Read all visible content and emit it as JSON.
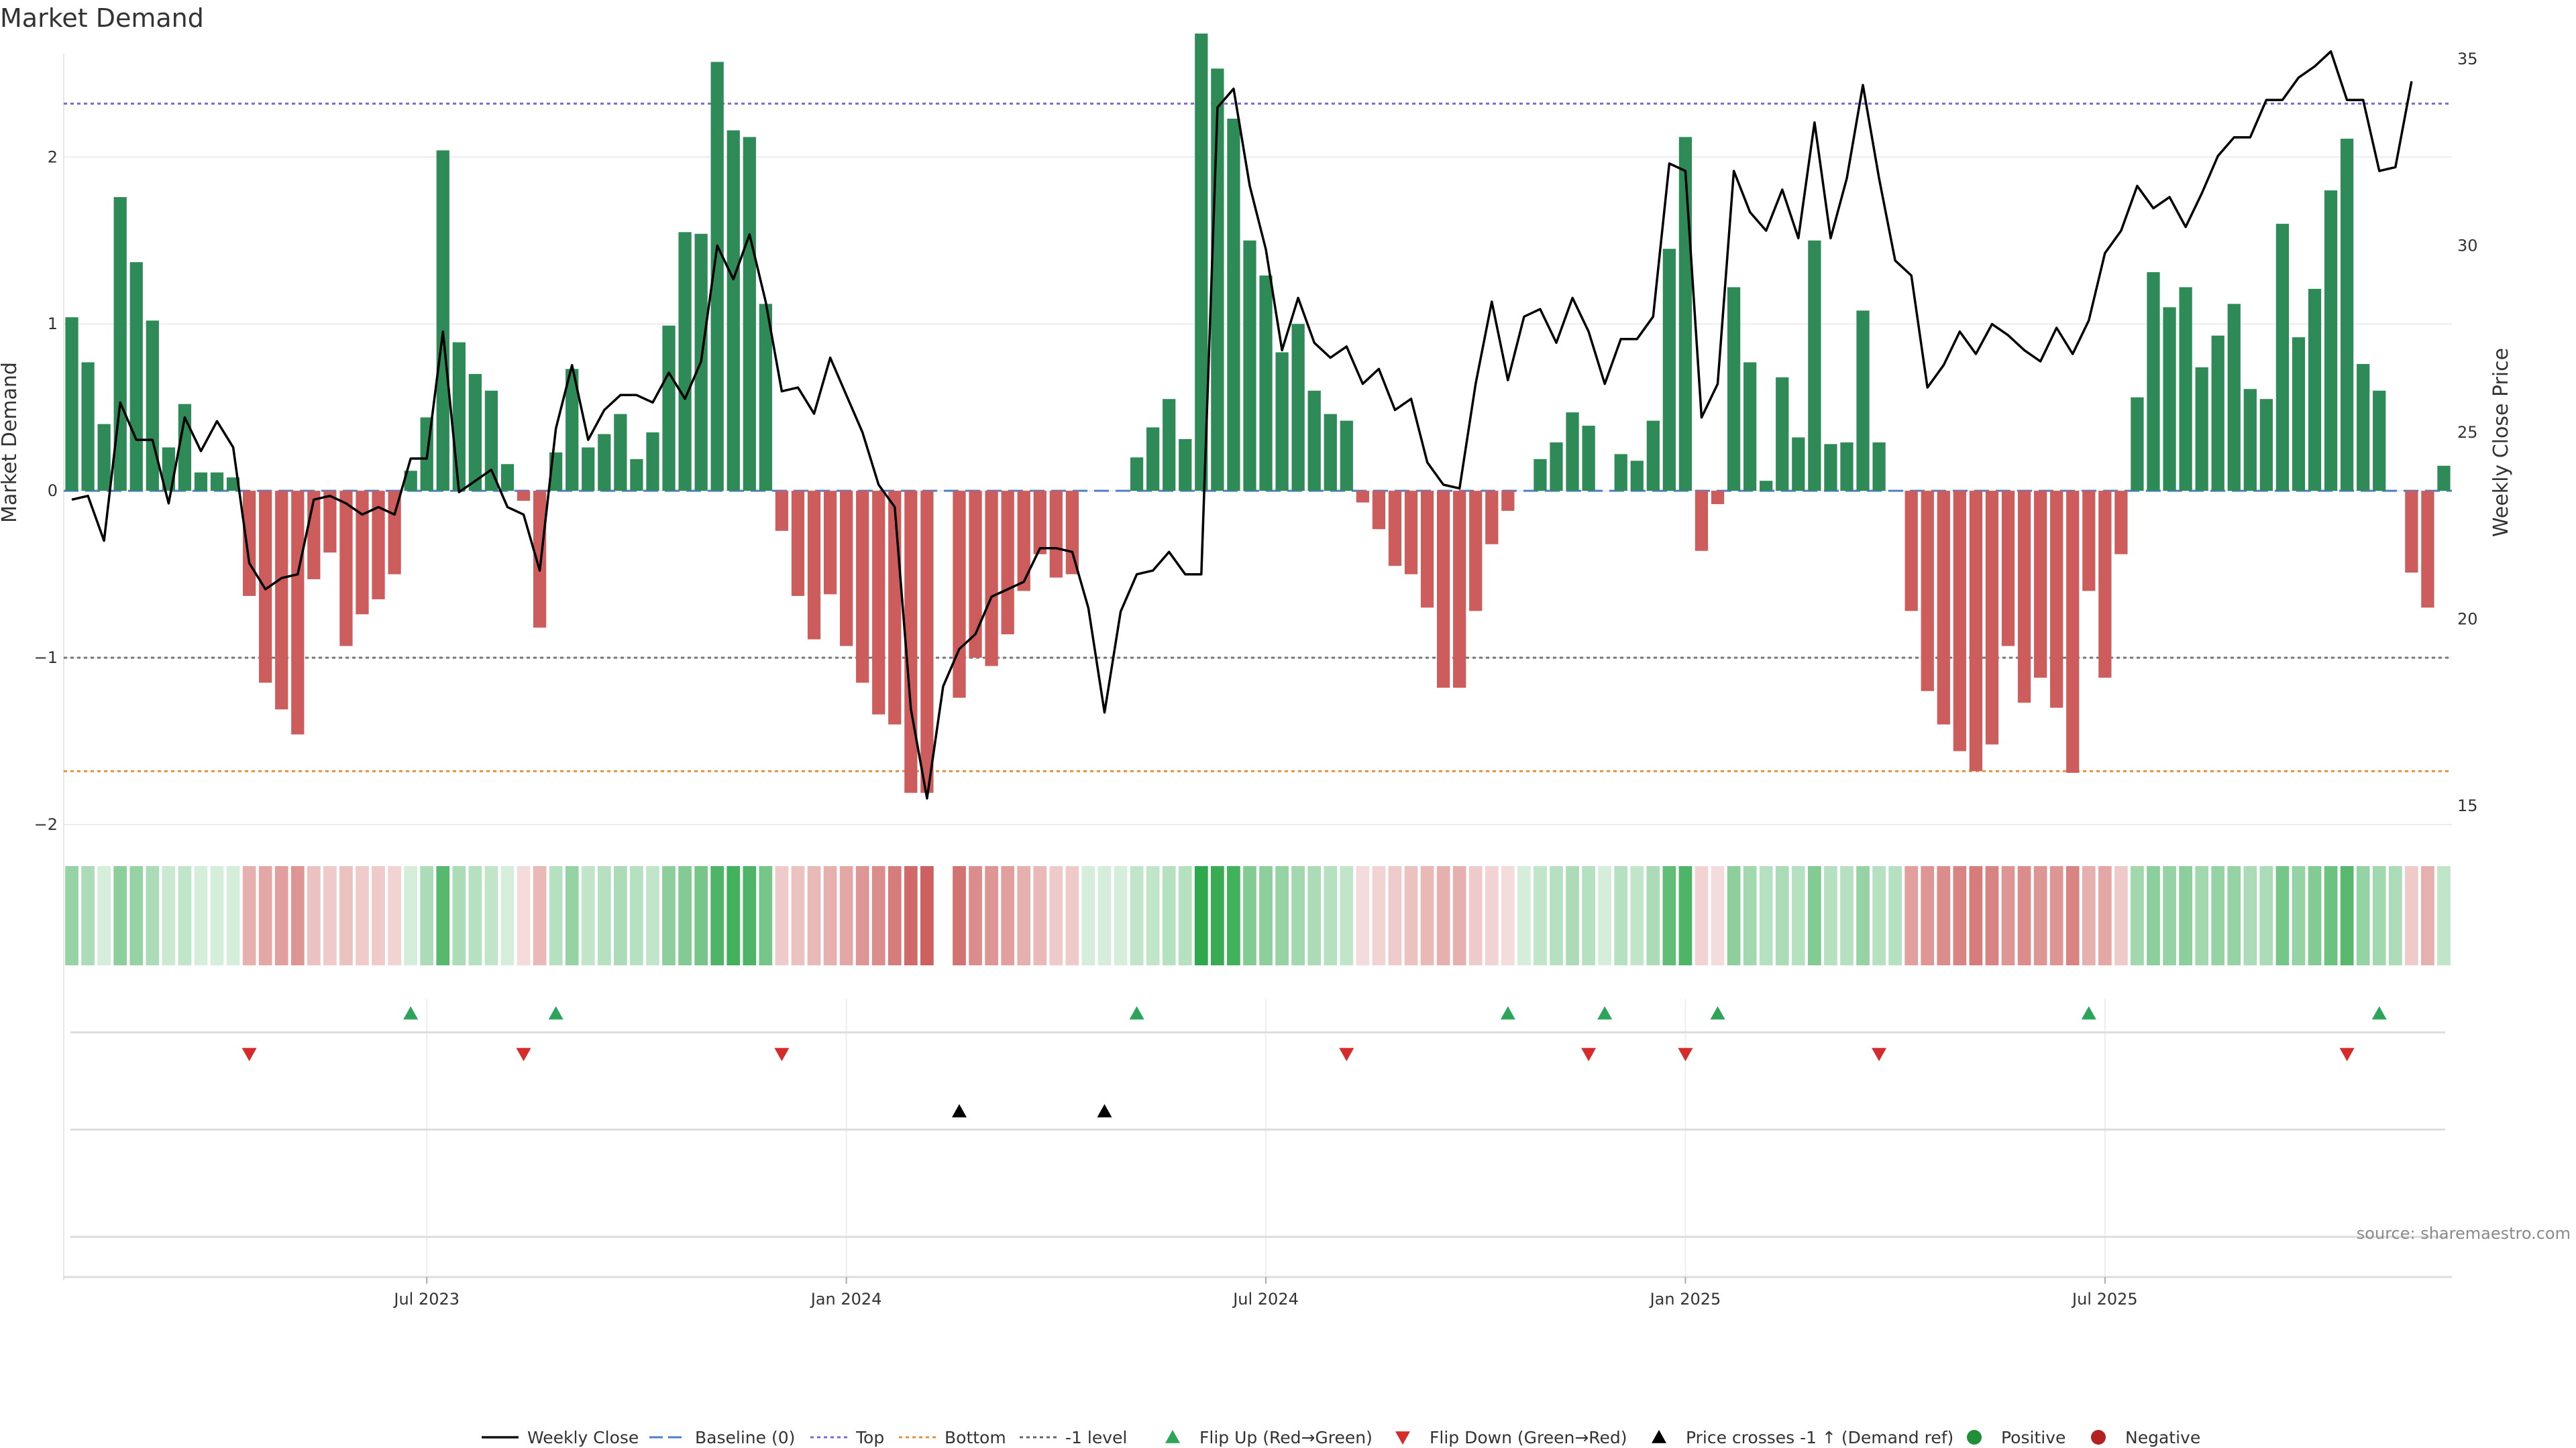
{
  "chart_data": {
    "type": "bar",
    "title": "Market Demand",
    "ylabel_left": "Market Demand",
    "ylabel_right": "Weekly Close Price",
    "ylim_left": [
      -2.0,
      2.7
    ],
    "ylim_right": [
      14.5,
      35.5
    ],
    "left_ticks": [
      {
        "v": 2,
        "label": "2"
      },
      {
        "v": 1,
        "label": "1"
      },
      {
        "v": 0,
        "label": "0"
      },
      {
        "v": -1,
        "label": "−1"
      },
      {
        "v": -2,
        "label": "−2"
      }
    ],
    "right_ticks": [
      {
        "v": 35,
        "label": "35"
      },
      {
        "v": 30,
        "label": "30"
      },
      {
        "v": 25,
        "label": "25"
      },
      {
        "v": 20,
        "label": "20"
      },
      {
        "v": 15,
        "label": "15"
      }
    ],
    "x_ticks": [
      {
        "week": 22,
        "label": "Jul 2023"
      },
      {
        "week": 48,
        "label": "Jan 2024"
      },
      {
        "week": 74,
        "label": "Jul 2024"
      },
      {
        "week": 100,
        "label": "Jan 2025"
      },
      {
        "week": 126,
        "label": "Jul 2025"
      }
    ],
    "reference_lines": {
      "top": 2.32,
      "baseline": 0,
      "minus_one": -1,
      "bottom": -1.68
    },
    "demand": [
      1.04,
      0.77,
      0.4,
      1.76,
      1.37,
      1.02,
      0.26,
      0.52,
      0.11,
      0.11,
      0.08,
      -0.63,
      -1.15,
      -1.31,
      -1.46,
      -0.53,
      -0.37,
      -0.93,
      -0.74,
      -0.65,
      -0.5,
      0.12,
      0.44,
      2.04,
      0.89,
      0.7,
      0.6,
      0.16,
      -0.06,
      -0.82,
      0.23,
      0.73,
      0.26,
      0.34,
      0.46,
      0.19,
      0.35,
      0.99,
      1.55,
      1.54,
      2.57,
      2.16,
      2.12,
      1.12,
      -0.24,
      -0.63,
      -0.89,
      -0.62,
      -0.93,
      -1.15,
      -1.34,
      -1.4,
      -1.81,
      -1.81,
      0.0,
      -1.24,
      -1.0,
      -1.05,
      -0.86,
      -0.6,
      -0.38,
      -0.52,
      -0.5,
      0.0,
      0.0,
      0.0,
      0.2,
      0.38,
      0.55,
      0.31,
      2.74,
      2.53,
      2.23,
      1.5,
      1.29,
      0.83,
      1.0,
      0.6,
      0.46,
      0.42,
      -0.07,
      -0.23,
      -0.45,
      -0.5,
      -0.7,
      -1.18,
      -1.18,
      -0.72,
      -0.32,
      -0.12,
      0.0,
      0.19,
      0.29,
      0.47,
      0.39,
      0.0,
      0.22,
      0.18,
      0.42,
      1.45,
      2.12,
      -0.36,
      -0.08,
      1.22,
      0.77,
      0.06,
      0.68,
      0.32,
      1.5,
      0.28,
      0.29,
      1.08,
      0.29,
      0.0,
      -0.72,
      -1.2,
      -1.4,
      -1.56,
      -1.68,
      -1.52,
      -0.93,
      -1.27,
      -1.12,
      -1.3,
      -1.69,
      -0.6,
      -1.12,
      -0.38,
      0.56,
      1.31,
      1.1,
      1.22,
      0.74,
      0.93,
      1.12,
      0.61,
      0.55,
      1.6,
      0.92,
      1.21,
      1.8,
      2.11,
      0.76,
      0.6,
      0.0,
      -0.49,
      -0.7,
      0.15
    ],
    "weekly_close": [
      23.2,
      23.3,
      22.1,
      25.8,
      24.8,
      24.8,
      23.1,
      25.4,
      24.5,
      25.3,
      24.6,
      21.5,
      20.8,
      21.1,
      21.2,
      23.2,
      23.3,
      23.1,
      22.8,
      23.0,
      22.8,
      24.3,
      24.3,
      27.7,
      23.4,
      23.7,
      24.0,
      23.0,
      22.8,
      21.3,
      25.1,
      26.8,
      24.8,
      25.6,
      26.0,
      26.0,
      25.8,
      26.6,
      25.9,
      26.9,
      30.0,
      29.1,
      30.3,
      28.5,
      26.1,
      26.2,
      25.5,
      27.0,
      26.0,
      25.0,
      23.6,
      23.0,
      17.6,
      15.2,
      18.2,
      19.2,
      19.6,
      20.6,
      20.8,
      21.0,
      21.9,
      21.9,
      21.8,
      20.3,
      17.5,
      20.2,
      21.2,
      21.3,
      21.8,
      21.2,
      21.2,
      33.7,
      34.2,
      31.6,
      29.9,
      27.2,
      28.6,
      27.4,
      27.0,
      27.3,
      26.3,
      26.7,
      25.6,
      25.9,
      24.2,
      23.6,
      23.5,
      26.3,
      28.5,
      26.4,
      28.1,
      28.3,
      27.4,
      28.6,
      27.7,
      26.3,
      27.5,
      27.5,
      28.1,
      32.2,
      32.0,
      25.4,
      26.3,
      32.0,
      30.9,
      30.4,
      31.5,
      30.2,
      33.3,
      30.2,
      31.8,
      34.3,
      31.8,
      29.6,
      29.2,
      26.2,
      26.8,
      27.7,
      27.1,
      27.9,
      27.6,
      27.2,
      26.9,
      27.8,
      27.1,
      28.0,
      29.8,
      30.4,
      31.6,
      31.0,
      31.3,
      30.5,
      31.4,
      32.4,
      32.9,
      32.9,
      33.9,
      33.9,
      34.5,
      34.8,
      35.2,
      33.9,
      33.9,
      32.0,
      32.1,
      34.4
    ],
    "strip_alpha": [
      0.5,
      0.4,
      0.2,
      0.55,
      0.5,
      0.4,
      0.25,
      0.3,
      0.2,
      0.2,
      0.2,
      0.45,
      0.5,
      0.55,
      0.6,
      0.35,
      0.3,
      0.35,
      0.3,
      0.3,
      0.25,
      0.2,
      0.4,
      0.8,
      0.4,
      0.35,
      0.3,
      0.2,
      0.2,
      0.4,
      0.35,
      0.5,
      0.3,
      0.35,
      0.4,
      0.35,
      0.3,
      0.55,
      0.6,
      0.65,
      0.85,
      0.9,
      0.85,
      0.65,
      0.3,
      0.35,
      0.4,
      0.45,
      0.5,
      0.6,
      0.65,
      0.75,
      0.85,
      0.9,
      0,
      0.8,
      0.65,
      0.6,
      0.55,
      0.45,
      0.4,
      0.3,
      0.3,
      0.2,
      0.2,
      0.2,
      0.3,
      0.3,
      0.35,
      0.35,
      1.0,
      0.95,
      0.9,
      0.6,
      0.55,
      0.5,
      0.45,
      0.4,
      0.35,
      0.3,
      0.2,
      0.25,
      0.3,
      0.35,
      0.4,
      0.45,
      0.45,
      0.3,
      0.25,
      0.2,
      0.2,
      0.3,
      0.35,
      0.4,
      0.35,
      0.2,
      0.35,
      0.3,
      0.4,
      0.75,
      0.85,
      0.25,
      0.2,
      0.55,
      0.45,
      0.35,
      0.4,
      0.35,
      0.6,
      0.35,
      0.35,
      0.5,
      0.35,
      0.35,
      0.55,
      0.6,
      0.65,
      0.7,
      0.75,
      0.7,
      0.6,
      0.65,
      0.6,
      0.6,
      0.7,
      0.45,
      0.5,
      0.3,
      0.45,
      0.55,
      0.5,
      0.55,
      0.45,
      0.5,
      0.5,
      0.4,
      0.4,
      0.65,
      0.5,
      0.6,
      0.7,
      0.8,
      0.5,
      0.45,
      0.4,
      0.3,
      0.45,
      0.3
    ],
    "flip_up_weeks": [
      21,
      30,
      66,
      89,
      95,
      102,
      125,
      143
    ],
    "flip_down_weeks": [
      11,
      28,
      44,
      79,
      94,
      100,
      112,
      141
    ],
    "price_cross_weeks": [
      55,
      64
    ],
    "source": "source: sharemaestro.com",
    "legend": [
      {
        "label": "Weekly Close",
        "kind": "line",
        "color": "#111111"
      },
      {
        "label": "Baseline (0)",
        "kind": "dash",
        "color": "#4d7fc7"
      },
      {
        "label": "Top",
        "kind": "dot",
        "color": "#7a6ad8"
      },
      {
        "label": "Bottom",
        "kind": "dot",
        "color": "#e8913a"
      },
      {
        "label": "-1 level",
        "kind": "dot",
        "color": "#666666"
      },
      {
        "label": "Flip Up (Red→Green)",
        "kind": "tri-up",
        "color": "#2ca55a"
      },
      {
        "label": "Flip Down (Green→Red)",
        "kind": "tri-down",
        "color": "#d62b2b"
      },
      {
        "label": "Price crosses -1 ↑ (Demand ref)",
        "kind": "tri-up",
        "color": "#000000"
      },
      {
        "label": "Positive",
        "kind": "dot-marker",
        "color": "#1f8f3a"
      },
      {
        "label": "Negative",
        "kind": "dot-marker",
        "color": "#b22222"
      }
    ],
    "colors": {
      "positive_bar": "#2e8b57",
      "negative_bar": "#cd5c5c",
      "strip_green": "#2ea84a",
      "strip_red": "#c8504e",
      "price_line": "#000000"
    }
  }
}
